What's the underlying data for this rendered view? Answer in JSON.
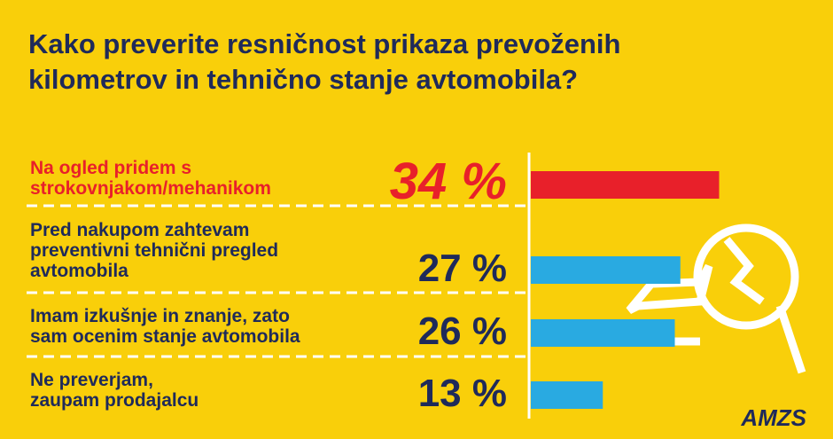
{
  "chart_data": {
    "type": "bar",
    "orientation": "horizontal",
    "title": "Kako preverite resničnost prikaza prevoženih\nkilometrov in tehnično stanje avtomobila?",
    "categories": [
      "Na ogled pridem s\nstrokovnjakom/mehanikom",
      "Pred nakupom zahtevam\npreventivni tehnični pregled\navtomobila",
      "Imam izkušnje in znanje, zato\nsam ocenim stanje avtomobila",
      "Ne preverjam,\nzaupam prodajalcu"
    ],
    "values": [
      34,
      27,
      26,
      13
    ],
    "value_labels": [
      "34 %",
      "27 %",
      "26 %",
      "13 %"
    ],
    "colors": [
      "#e8202a",
      "#29aae1",
      "#29aae1",
      "#29aae1"
    ],
    "highlight": 0,
    "source": "AMZS"
  }
}
